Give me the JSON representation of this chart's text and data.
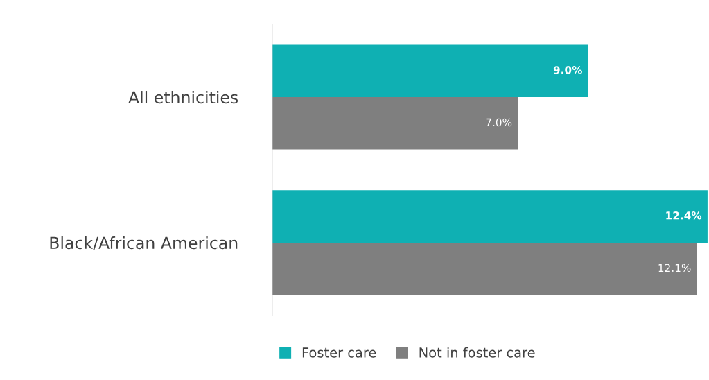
{
  "chart_data": {
    "type": "bar",
    "orientation": "horizontal",
    "categories": [
      "All ethnicities",
      "Black/African American"
    ],
    "series": [
      {
        "name": "Foster care",
        "color": "#0fb0b3",
        "values": [
          9.0,
          12.4
        ],
        "value_labels": [
          "9.0%",
          "12.4%"
        ]
      },
      {
        "name": "Not in foster care",
        "color": "#7f7f7f",
        "values": [
          7.0,
          12.1
        ],
        "value_labels": [
          "7.0%",
          "12.1%"
        ]
      }
    ],
    "tick_labels": "y",
    "legend": "bottom"
  }
}
